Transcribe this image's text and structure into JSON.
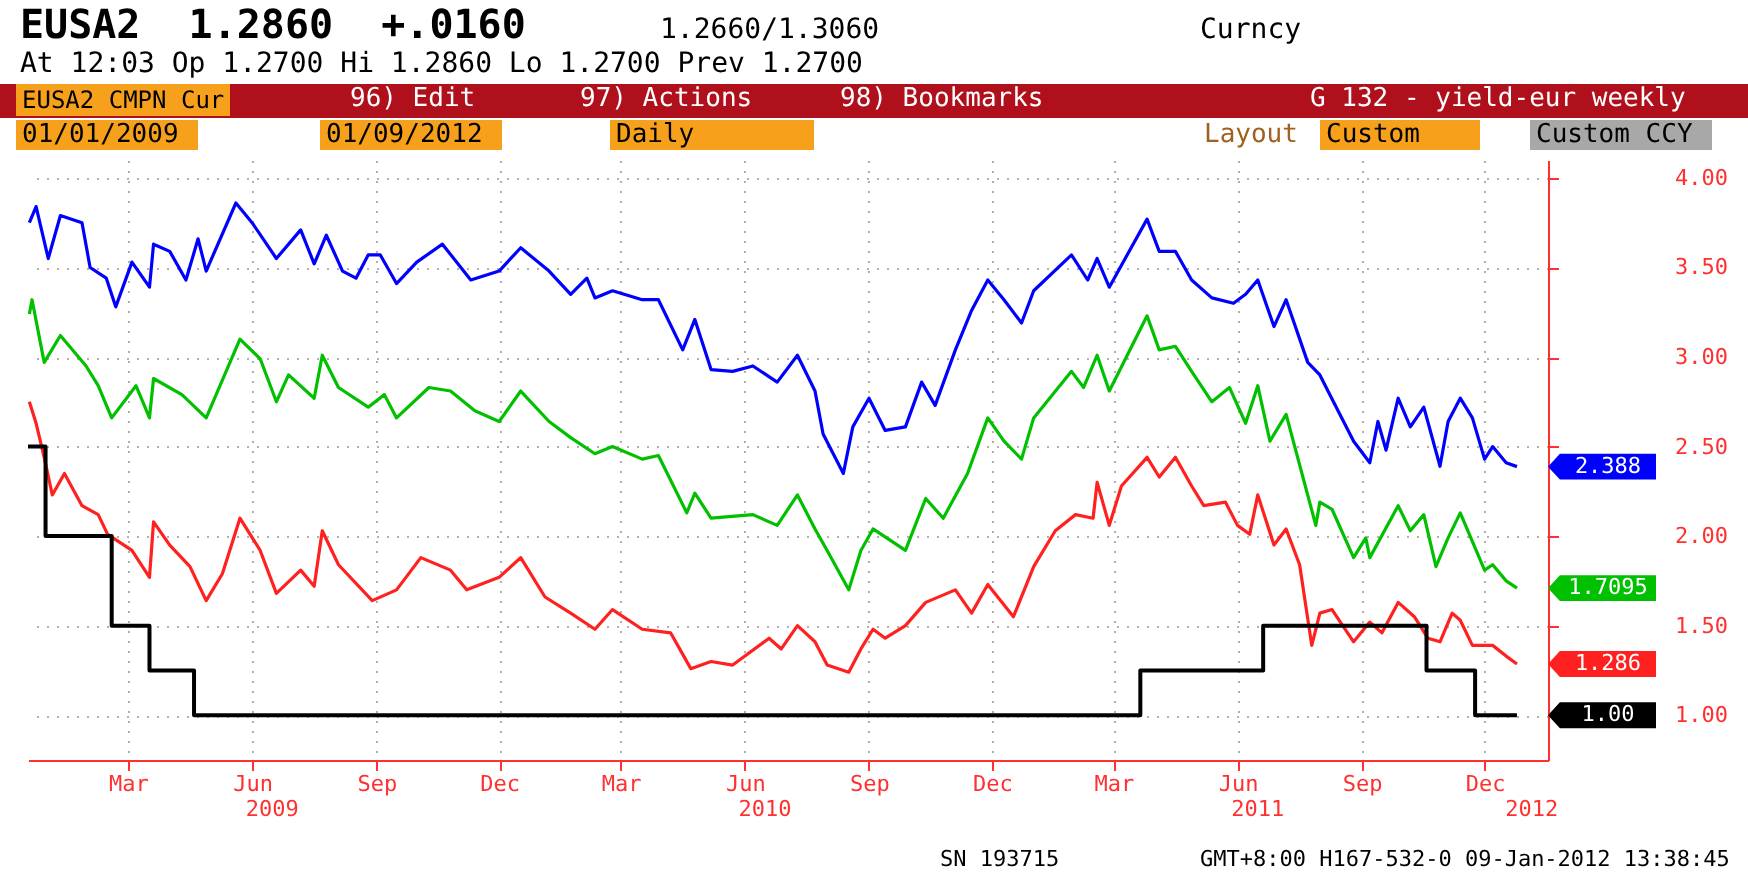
{
  "chart_data": {
    "type": "line",
    "title": "EUSA2  1.2860  +.0160",
    "subtitle": "At 12:03 Op 1.2700  Hi 1.2860  Lo 1.2700  Prev 1.2700",
    "xlim": [
      "2009-01-01",
      "2012-02-01"
    ],
    "xticks": [
      {
        "value": "2009-03-16",
        "label": "Mar"
      },
      {
        "value": "2009-06-16",
        "label": "Jun"
      },
      {
        "value": "2009-09-16",
        "label": "Sep"
      },
      {
        "value": "2009-12-16",
        "label": "Dec"
      },
      {
        "value": "2010-03-16",
        "label": "Mar"
      },
      {
        "value": "2010-06-16",
        "label": "Jun"
      },
      {
        "value": "2010-09-16",
        "label": "Sep"
      },
      {
        "value": "2010-12-16",
        "label": "Dec"
      },
      {
        "value": "2011-03-16",
        "label": "Mar"
      },
      {
        "value": "2011-06-16",
        "label": "Jun"
      },
      {
        "value": "2011-09-16",
        "label": "Sep"
      },
      {
        "value": "2011-12-16",
        "label": "Dec"
      }
    ],
    "x2lim": [
      "2009-01-01",
      "2012-02-01"
    ],
    "x2ticks": [
      {
        "value": "2009-07-01",
        "label": "2009"
      },
      {
        "value": "2010-07-01",
        "label": "2010"
      },
      {
        "value": "2011-07-01",
        "label": "2011"
      },
      {
        "value": "2012-01-20",
        "label": "2012"
      }
    ],
    "ylim": [
      0.75,
      4.1
    ],
    "yticks": [
      {
        "value": 1,
        "label": "1.00"
      },
      {
        "value": 1.5,
        "label": "1.50"
      },
      {
        "value": 2,
        "label": "2.00"
      },
      {
        "value": 2.5,
        "label": "2.50"
      },
      {
        "value": 3,
        "label": "3.00"
      },
      {
        "value": 3.5,
        "label": "3.50"
      },
      {
        "value": 4,
        "label": "4.00"
      }
    ],
    "grid": true,
    "series": [
      {
        "color": "#0000ff",
        "x": [
          "2009-01-02",
          "2009-01-07",
          "2009-01-16",
          "2009-01-25",
          "2009-02-10",
          "2009-02-16",
          "2009-02-28",
          "2009-03-07",
          "2009-03-19",
          "2009-04-01",
          "2009-04-04",
          "2009-04-16",
          "2009-04-28",
          "2009-05-07",
          "2009-05-13",
          "2009-06-04",
          "2009-06-16",
          "2009-07-04",
          "2009-07-22",
          "2009-08-01",
          "2009-08-10",
          "2009-08-22",
          "2009-09-01",
          "2009-09-10",
          "2009-09-19",
          "2009-10-01",
          "2009-10-16",
          "2009-11-04",
          "2009-11-25",
          "2009-12-16",
          "2010-01-01",
          "2010-01-22",
          "2010-02-07",
          "2010-02-19",
          "2010-02-25",
          "2010-03-10",
          "2010-04-01",
          "2010-04-13",
          "2010-05-01",
          "2010-05-10",
          "2010-05-22",
          "2010-06-07",
          "2010-06-22",
          "2010-07-10",
          "2010-07-25",
          "2010-08-07",
          "2010-08-13",
          "2010-08-28",
          "2010-09-04",
          "2010-09-16",
          "2010-09-28",
          "2010-10-13",
          "2010-10-25",
          "2010-11-04",
          "2010-11-19",
          "2010-12-01",
          "2010-12-13",
          "2010-12-25",
          "2011-01-07",
          "2011-01-16",
          "2011-02-13",
          "2011-02-25",
          "2011-03-04",
          "2011-03-13",
          "2011-04-10",
          "2011-04-19",
          "2011-05-01",
          "2011-05-13",
          "2011-05-28",
          "2011-06-13",
          "2011-06-22",
          "2011-07-01",
          "2011-07-13",
          "2011-07-22",
          "2011-08-07",
          "2011-08-16",
          "2011-08-22",
          "2011-09-10",
          "2011-09-22",
          "2011-09-28",
          "2011-10-04",
          "2011-10-13",
          "2011-10-22",
          "2011-11-01",
          "2011-11-13",
          "2011-11-19",
          "2011-11-28",
          "2011-12-07",
          "2011-12-16",
          "2011-12-22",
          "2012-01-01",
          "2012-01-09"
        ],
        "values": [
          3.75,
          3.84,
          3.55,
          3.79,
          3.75,
          3.5,
          3.44,
          3.28,
          3.53,
          3.39,
          3.63,
          3.59,
          3.43,
          3.66,
          3.48,
          3.86,
          3.75,
          3.55,
          3.71,
          3.52,
          3.68,
          3.48,
          3.44,
          3.57,
          3.57,
          3.41,
          3.53,
          3.63,
          3.43,
          3.48,
          3.61,
          3.48,
          3.35,
          3.44,
          3.33,
          3.37,
          3.32,
          3.32,
          3.04,
          3.21,
          2.93,
          2.92,
          2.95,
          2.86,
          3.01,
          2.81,
          2.57,
          2.35,
          2.61,
          2.77,
          2.59,
          2.61,
          2.86,
          2.73,
          3.04,
          3.26,
          3.43,
          3.32,
          3.19,
          3.37,
          3.57,
          3.43,
          3.55,
          3.39,
          3.77,
          3.59,
          3.59,
          3.43,
          3.33,
          3.3,
          3.35,
          3.43,
          3.17,
          3.32,
          2.97,
          2.9,
          2.81,
          2.53,
          2.41,
          2.64,
          2.48,
          2.77,
          2.61,
          2.72,
          2.39,
          2.64,
          2.77,
          2.66,
          2.43,
          2.5,
          2.41,
          2.388
        ]
      },
      {
        "color": "#00c000",
        "x": [
          "2009-01-02",
          "2009-01-04",
          "2009-01-13",
          "2009-01-25",
          "2009-02-13",
          "2009-02-22",
          "2009-03-04",
          "2009-03-22",
          "2009-04-01",
          "2009-04-04",
          "2009-04-25",
          "2009-05-13",
          "2009-06-07",
          "2009-06-22",
          "2009-07-04",
          "2009-07-13",
          "2009-08-01",
          "2009-08-07",
          "2009-08-19",
          "2009-09-10",
          "2009-09-22",
          "2009-10-01",
          "2009-10-25",
          "2009-11-10",
          "2009-11-28",
          "2009-12-16",
          "2010-01-01",
          "2010-01-22",
          "2010-02-07",
          "2010-02-25",
          "2010-03-10",
          "2010-04-01",
          "2010-04-13",
          "2010-05-04",
          "2010-05-10",
          "2010-05-22",
          "2010-06-22",
          "2010-07-10",
          "2010-07-25",
          "2010-08-07",
          "2010-08-16",
          "2010-09-01",
          "2010-09-10",
          "2010-09-19",
          "2010-10-13",
          "2010-10-28",
          "2010-11-10",
          "2010-11-28",
          "2010-12-13",
          "2010-12-25",
          "2011-01-07",
          "2011-01-16",
          "2011-02-13",
          "2011-02-22",
          "2011-03-04",
          "2011-03-13",
          "2011-04-10",
          "2011-04-19",
          "2011-05-01",
          "2011-05-13",
          "2011-05-28",
          "2011-06-10",
          "2011-06-22",
          "2011-07-01",
          "2011-07-10",
          "2011-07-22",
          "2011-08-13",
          "2011-08-16",
          "2011-08-25",
          "2011-09-10",
          "2011-09-19",
          "2011-09-22",
          "2011-10-13",
          "2011-10-22",
          "2011-11-01",
          "2011-11-10",
          "2011-11-19",
          "2011-11-28",
          "2011-12-16",
          "2011-12-22",
          "2012-01-01",
          "2012-01-09"
        ],
        "values": [
          3.24,
          3.32,
          2.97,
          3.12,
          2.95,
          2.84,
          2.66,
          2.84,
          2.66,
          2.88,
          2.79,
          2.66,
          3.1,
          2.99,
          2.75,
          2.9,
          2.77,
          3.01,
          2.83,
          2.72,
          2.79,
          2.66,
          2.83,
          2.81,
          2.7,
          2.64,
          2.81,
          2.64,
          2.55,
          2.46,
          2.5,
          2.43,
          2.45,
          2.13,
          2.24,
          2.1,
          2.12,
          2.06,
          2.23,
          2.04,
          1.92,
          1.7,
          1.92,
          2.04,
          1.92,
          2.21,
          2.1,
          2.35,
          2.66,
          2.53,
          2.43,
          2.66,
          2.92,
          2.83,
          3.01,
          2.81,
          3.23,
          3.04,
          3.06,
          2.92,
          2.75,
          2.83,
          2.63,
          2.84,
          2.53,
          2.68,
          2.06,
          2.19,
          2.15,
          1.88,
          1.99,
          1.88,
          2.17,
          2.03,
          2.12,
          1.83,
          1.99,
          2.13,
          1.81,
          1.84,
          1.75,
          1.7095
        ]
      },
      {
        "color": "#ff2020",
        "x": [
          "2009-01-02",
          "2009-01-07",
          "2009-01-13",
          "2009-01-19",
          "2009-01-28",
          "2009-02-10",
          "2009-02-22",
          "2009-03-01",
          "2009-03-19",
          "2009-04-01",
          "2009-04-04",
          "2009-04-16",
          "2009-05-01",
          "2009-05-13",
          "2009-05-25",
          "2009-06-07",
          "2009-06-22",
          "2009-07-04",
          "2009-07-22",
          "2009-08-01",
          "2009-08-07",
          "2009-08-19",
          "2009-09-13",
          "2009-10-01",
          "2009-10-19",
          "2009-11-10",
          "2009-11-22",
          "2009-12-16",
          "2010-01-01",
          "2010-01-19",
          "2010-02-07",
          "2010-02-25",
          "2010-03-10",
          "2010-04-01",
          "2010-04-22",
          "2010-05-07",
          "2010-05-22",
          "2010-06-07",
          "2010-07-04",
          "2010-07-13",
          "2010-07-25",
          "2010-08-07",
          "2010-08-16",
          "2010-09-01",
          "2010-09-10",
          "2010-09-19",
          "2010-09-28",
          "2010-10-13",
          "2010-10-28",
          "2010-11-19",
          "2010-12-01",
          "2010-12-13",
          "2011-01-01",
          "2011-01-16",
          "2011-02-01",
          "2011-02-16",
          "2011-03-01",
          "2011-03-04",
          "2011-03-13",
          "2011-03-22",
          "2011-04-10",
          "2011-04-19",
          "2011-05-01",
          "2011-05-13",
          "2011-05-22",
          "2011-06-07",
          "2011-06-16",
          "2011-06-25",
          "2011-07-01",
          "2011-07-13",
          "2011-07-22",
          "2011-08-01",
          "2011-08-10",
          "2011-08-16",
          "2011-08-25",
          "2011-09-10",
          "2011-09-22",
          "2011-10-01",
          "2011-10-13",
          "2011-10-25",
          "2011-11-04",
          "2011-11-13",
          "2011-11-22",
          "2011-11-28",
          "2011-12-07",
          "2011-12-22",
          "2012-01-01",
          "2012-01-09"
        ],
        "values": [
          2.75,
          2.63,
          2.44,
          2.23,
          2.35,
          2.17,
          2.12,
          2.01,
          1.92,
          1.77,
          2.08,
          1.95,
          1.83,
          1.64,
          1.79,
          2.1,
          1.92,
          1.68,
          1.81,
          1.72,
          2.03,
          1.84,
          1.64,
          1.7,
          1.88,
          1.81,
          1.7,
          1.77,
          1.88,
          1.66,
          1.57,
          1.48,
          1.59,
          1.48,
          1.46,
          1.26,
          1.3,
          1.28,
          1.43,
          1.37,
          1.5,
          1.41,
          1.28,
          1.24,
          1.37,
          1.48,
          1.43,
          1.5,
          1.63,
          1.7,
          1.57,
          1.73,
          1.55,
          1.83,
          2.03,
          2.12,
          2.1,
          2.3,
          2.06,
          2.28,
          2.44,
          2.33,
          2.44,
          2.28,
          2.17,
          2.19,
          2.06,
          2.01,
          2.23,
          1.95,
          2.04,
          1.84,
          1.39,
          1.57,
          1.59,
          1.41,
          1.52,
          1.46,
          1.63,
          1.55,
          1.43,
          1.41,
          1.57,
          1.53,
          1.39,
          1.39,
          1.33,
          1.286
        ]
      },
      {
        "type": "step",
        "color": "#000000",
        "x": [
          "2009-01-01",
          "2009-01-14",
          "2009-03-04",
          "2009-04-01",
          "2009-05-04",
          "2011-04-05",
          "2011-07-05",
          "2011-11-03",
          "2011-12-09",
          "2012-01-09"
        ],
        "values": [
          2.5,
          2.0,
          1.5,
          1.25,
          1.0,
          1.25,
          1.5,
          1.25,
          1.0,
          1.0
        ]
      }
    ],
    "annotations": [
      "1.2660/1.3060",
      "Curncy",
      "EUSA2 CMPN Cur",
      "96) Edit",
      "97) Actions",
      "98) Bookmarks",
      "G 132 - yield-eur weekly",
      "01/01/2009",
      "01/09/2012",
      "Daily",
      "Layout",
      "Custom",
      "Custom CCY",
      "SN 193715",
      "GMT+8:00 H167-532-0 09-Jan-2012 13:38:45",
      {
        "text": "2.388",
        "x": "2012-01-09",
        "y": 2.388
      },
      {
        "text": "1.7095",
        "x": "2012-01-09",
        "y": 1.7095
      },
      {
        "text": "1.286",
        "x": "2012-01-09",
        "y": 1.286
      },
      {
        "text": "1.00",
        "x": "2012-01-09",
        "y": 1.0
      }
    ]
  }
}
